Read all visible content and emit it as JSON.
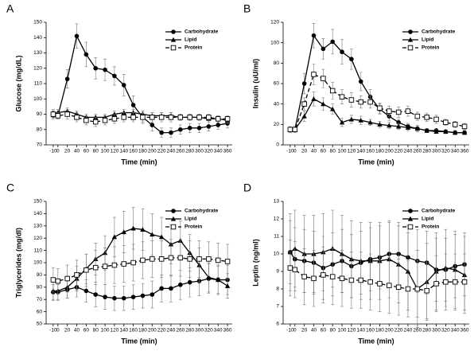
{
  "chart_data": [
    {
      "type": "line",
      "title": "A",
      "x_label": "Time (min)",
      "y_label": "Glucose (mg/dL)",
      "x": [
        -10,
        0,
        20,
        40,
        60,
        80,
        100,
        120,
        140,
        160,
        180,
        200,
        220,
        240,
        260,
        280,
        300,
        320,
        340,
        360
      ],
      "xlim": [
        -25,
        370
      ],
      "xticks": [
        -10,
        0,
        20,
        40,
        60,
        80,
        100,
        120,
        140,
        160,
        180,
        200,
        220,
        240,
        260,
        280,
        300,
        320,
        340,
        360
      ],
      "ylim": [
        70,
        150
      ],
      "yticks": [
        70,
        80,
        90,
        100,
        110,
        120,
        130,
        140,
        150
      ],
      "series": [
        {
          "name": "Carbohydrate",
          "color": "#000000",
          "marker": "circle",
          "dash": false,
          "values": [
            89,
            89,
            113,
            141,
            129,
            120,
            119,
            115,
            109,
            96,
            88,
            83,
            78,
            78,
            80,
            81,
            81,
            82,
            83,
            84
          ],
          "errors": [
            2,
            2,
            6,
            8,
            8,
            7,
            7,
            6,
            7,
            6,
            4,
            4,
            3,
            3,
            3,
            3,
            3,
            3,
            3,
            3
          ]
        },
        {
          "name": "Lipid",
          "color": "#000000",
          "marker": "triangle",
          "dash": false,
          "values": [
            91,
            91,
            92,
            90,
            88,
            88,
            88,
            90,
            91,
            91,
            90,
            89,
            89,
            89,
            88,
            88,
            88,
            87,
            87,
            86
          ],
          "errors": [
            2,
            2,
            2,
            2,
            2,
            2,
            2,
            2,
            2,
            2,
            2,
            2,
            2,
            2,
            2,
            2,
            2,
            2,
            2,
            2
          ]
        },
        {
          "name": "Protein",
          "color": "#000000",
          "marker": "square",
          "dash": true,
          "values": [
            90,
            89,
            90,
            88,
            86,
            85,
            86,
            87,
            88,
            88,
            88,
            88,
            88,
            88,
            88,
            88,
            88,
            88,
            87,
            87
          ],
          "errors": [
            2,
            2,
            3,
            3,
            3,
            3,
            3,
            3,
            3,
            3,
            3,
            3,
            3,
            3,
            2,
            2,
            2,
            2,
            2,
            2
          ]
        }
      ]
    },
    {
      "type": "line",
      "title": "B",
      "x_label": "Time (min)",
      "y_label": "Insulin (uU/ml)",
      "x": [
        -10,
        0,
        20,
        40,
        60,
        80,
        100,
        120,
        140,
        160,
        180,
        200,
        220,
        240,
        260,
        280,
        300,
        320,
        340,
        360
      ],
      "xlim": [
        -25,
        370
      ],
      "xticks": [
        -10,
        0,
        20,
        40,
        60,
        80,
        100,
        120,
        140,
        160,
        180,
        200,
        220,
        240,
        260,
        280,
        300,
        320,
        340,
        360
      ],
      "ylim": [
        0,
        120
      ],
      "yticks": [
        0,
        20,
        40,
        60,
        80,
        100,
        120
      ],
      "series": [
        {
          "name": "Carbohydrate",
          "color": "#000000",
          "marker": "circle",
          "dash": false,
          "values": [
            15,
            15,
            60,
            107,
            94,
            101,
            91,
            84,
            62,
            47,
            35,
            28,
            22,
            18,
            16,
            14,
            14,
            13,
            12,
            12
          ],
          "errors": [
            3,
            3,
            10,
            12,
            10,
            12,
            12,
            10,
            9,
            7,
            5,
            4,
            3,
            3,
            3,
            2,
            2,
            2,
            2,
            2
          ]
        },
        {
          "name": "Lipid",
          "color": "#000000",
          "marker": "triangle",
          "dash": false,
          "values": [
            15,
            15,
            28,
            45,
            40,
            35,
            22,
            25,
            24,
            22,
            20,
            19,
            18,
            17,
            16,
            14,
            13,
            13,
            12,
            12
          ],
          "errors": [
            2,
            2,
            5,
            7,
            6,
            5,
            4,
            4,
            4,
            3,
            3,
            3,
            3,
            3,
            3,
            2,
            2,
            2,
            2,
            2
          ]
        },
        {
          "name": "Protein",
          "color": "#000000",
          "marker": "square",
          "dash": true,
          "values": [
            15,
            15,
            40,
            69,
            65,
            53,
            47,
            44,
            42,
            42,
            36,
            33,
            32,
            33,
            28,
            27,
            25,
            22,
            20,
            18
          ],
          "errors": [
            2,
            2,
            6,
            10,
            9,
            8,
            7,
            7,
            6,
            6,
            5,
            5,
            5,
            5,
            4,
            4,
            4,
            3,
            3,
            3
          ]
        }
      ]
    },
    {
      "type": "line",
      "title": "C",
      "x_label": "Time (min)",
      "y_label": "Triglycerides (mg/dl)",
      "x": [
        -10,
        0,
        20,
        40,
        60,
        80,
        100,
        120,
        140,
        160,
        180,
        200,
        220,
        240,
        260,
        280,
        300,
        320,
        340,
        360
      ],
      "xlim": [
        -25,
        370
      ],
      "xticks": [
        -10,
        0,
        20,
        40,
        60,
        80,
        100,
        120,
        140,
        160,
        180,
        200,
        220,
        240,
        260,
        280,
        300,
        320,
        340,
        360
      ],
      "ylim": [
        50,
        150
      ],
      "yticks": [
        50,
        60,
        70,
        80,
        90,
        100,
        110,
        120,
        130,
        140,
        150
      ],
      "series": [
        {
          "name": "Carbohydrate",
          "color": "#000000",
          "marker": "circle",
          "dash": false,
          "values": [
            76,
            76,
            78,
            80,
            77,
            74,
            72,
            71,
            71,
            72,
            73,
            74,
            79,
            79,
            82,
            84,
            85,
            87,
            86,
            86
          ],
          "errors": [
            6,
            6,
            7,
            8,
            9,
            10,
            10,
            10,
            10,
            10,
            10,
            11,
            11,
            11,
            12,
            12,
            12,
            12,
            12,
            12
          ]
        },
        {
          "name": "Lipid",
          "color": "#000000",
          "marker": "triangle",
          "dash": false,
          "values": [
            77,
            77,
            80,
            87,
            95,
            103,
            108,
            121,
            125,
            128,
            127,
            123,
            121,
            115,
            118,
            108,
            98,
            88,
            86,
            81
          ],
          "errors": [
            8,
            8,
            9,
            10,
            12,
            13,
            14,
            16,
            17,
            17,
            17,
            17,
            16,
            16,
            16,
            15,
            14,
            12,
            11,
            10
          ]
        },
        {
          "name": "Protein",
          "color": "#000000",
          "marker": "square",
          "dash": true,
          "values": [
            86,
            85,
            87,
            90,
            94,
            96,
            97,
            98,
            99,
            100,
            102,
            103,
            103,
            104,
            104,
            103,
            103,
            103,
            102,
            101
          ],
          "errors": [
            10,
            10,
            11,
            12,
            13,
            14,
            15,
            15,
            15,
            15,
            15,
            15,
            15,
            15,
            15,
            15,
            15,
            14,
            14,
            14
          ]
        }
      ]
    },
    {
      "type": "line",
      "title": "D",
      "x_label": "Time (min)",
      "y_label": "Leptin (ng/ml)",
      "x": [
        -10,
        0,
        20,
        40,
        60,
        80,
        100,
        120,
        140,
        160,
        180,
        200,
        220,
        240,
        260,
        280,
        300,
        320,
        340,
        360
      ],
      "xlim": [
        -25,
        370
      ],
      "xticks": [
        -10,
        0,
        20,
        40,
        60,
        80,
        100,
        120,
        140,
        160,
        180,
        200,
        220,
        240,
        260,
        280,
        300,
        320,
        340,
        360
      ],
      "ylim": [
        6,
        13
      ],
      "yticks": [
        6,
        7,
        8,
        9,
        10,
        11,
        12,
        13
      ],
      "series": [
        {
          "name": "Carbohydrate",
          "color": "#000000",
          "marker": "circle",
          "dash": false,
          "values": [
            10.1,
            9.7,
            9.6,
            9.5,
            9.2,
            9.4,
            9.6,
            9.3,
            9.5,
            9.7,
            9.8,
            10.0,
            10.0,
            9.8,
            9.6,
            9.5,
            9.1,
            9.1,
            9.3,
            9.4
          ],
          "errors": [
            1.8,
            1.8,
            1.8,
            1.8,
            1.8,
            1.8,
            1.8,
            1.8,
            1.8,
            1.8,
            1.8,
            1.8,
            1.8,
            1.8,
            1.8,
            1.8,
            1.8,
            1.8,
            1.8,
            1.8
          ]
        },
        {
          "name": "Lipid",
          "color": "#000000",
          "marker": "triangle",
          "dash": false,
          "values": [
            10.1,
            10.3,
            10.0,
            10.0,
            10.1,
            10.3,
            10.0,
            9.7,
            9.6,
            9.6,
            9.6,
            9.7,
            9.4,
            9.0,
            8.0,
            8.4,
            9.0,
            9.2,
            9.1,
            8.8
          ],
          "errors": [
            2.2,
            2.2,
            2.2,
            2.2,
            2.2,
            2.2,
            2.2,
            2.2,
            2.2,
            2.2,
            2.2,
            2.2,
            2.2,
            2.2,
            2.2,
            2.2,
            2.2,
            2.2,
            2.2,
            2.2
          ]
        },
        {
          "name": "Protein",
          "color": "#000000",
          "marker": "square",
          "dash": true,
          "values": [
            9.2,
            9.1,
            8.7,
            8.6,
            8.8,
            8.7,
            8.6,
            8.5,
            8.5,
            8.4,
            8.3,
            8.2,
            8.1,
            8.0,
            8.0,
            7.9,
            8.3,
            8.4,
            8.4,
            8.4
          ],
          "errors": [
            1.6,
            1.6,
            1.6,
            1.6,
            1.6,
            1.6,
            1.6,
            1.6,
            1.6,
            1.6,
            1.6,
            1.6,
            1.6,
            1.6,
            1.6,
            1.6,
            1.6,
            1.6,
            1.6,
            1.6
          ]
        }
      ]
    }
  ]
}
